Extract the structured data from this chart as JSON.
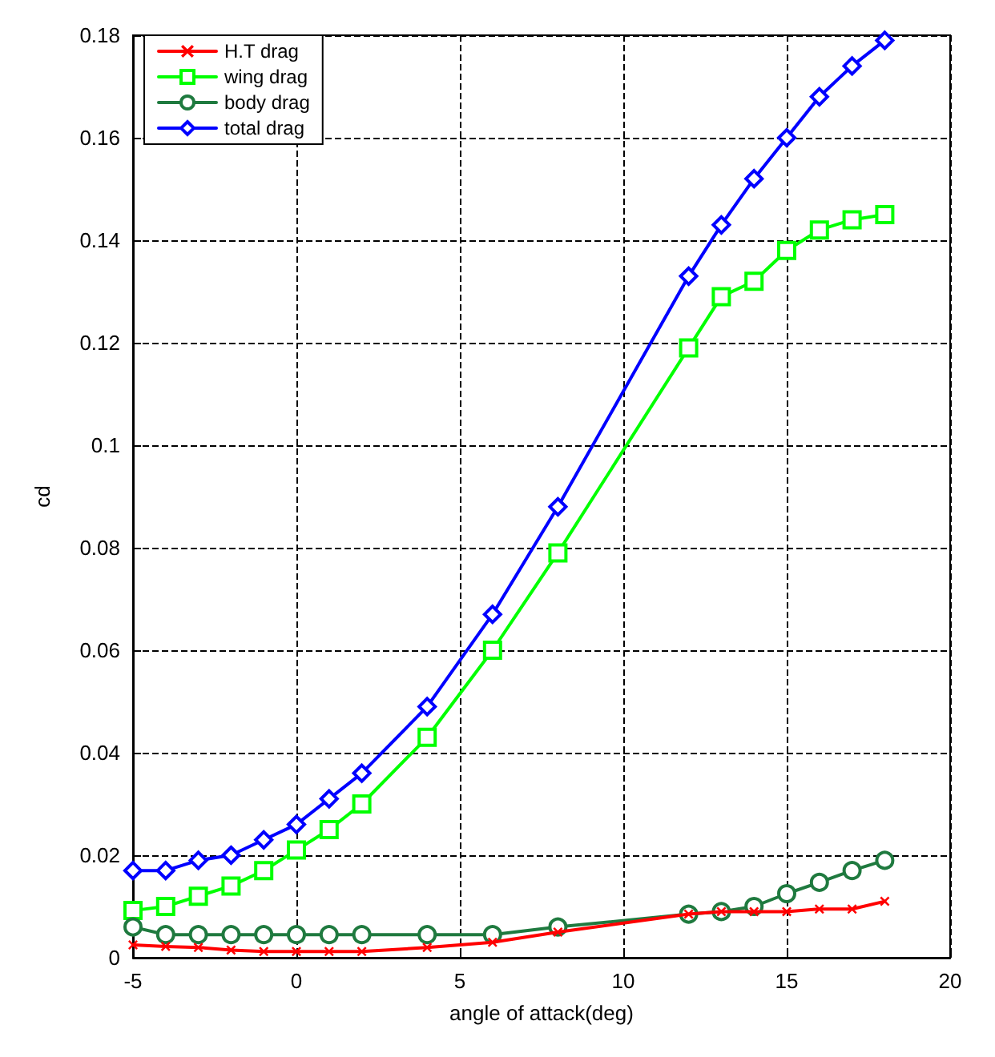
{
  "chart_data": {
    "type": "line",
    "xlabel": "angle of attack(deg)",
    "ylabel": "cd",
    "x": [
      -5,
      -4,
      -3,
      -2,
      -1,
      0,
      1,
      2,
      4,
      6,
      8,
      12,
      13,
      14,
      15,
      16,
      17,
      18
    ],
    "series": [
      {
        "name": "H.T drag",
        "color": "#ff0000",
        "marker": "cross",
        "values": [
          0.0025,
          0.0022,
          0.002,
          0.0015,
          0.0012,
          0.0012,
          0.0012,
          0.0012,
          0.002,
          0.003,
          0.005,
          0.0085,
          0.009,
          0.009,
          0.009,
          0.0095,
          0.0095,
          0.011
        ]
      },
      {
        "name": "wing drag",
        "color": "#00ff00",
        "marker": "square",
        "values": [
          0.0092,
          0.01,
          0.012,
          0.014,
          0.017,
          0.021,
          0.025,
          0.03,
          0.043,
          0.06,
          0.079,
          0.119,
          0.129,
          0.132,
          0.138,
          0.142,
          0.144,
          0.145
        ]
      },
      {
        "name": "body drag",
        "color": "#1f7a3f",
        "marker": "circle",
        "values": [
          0.006,
          0.0045,
          0.0045,
          0.0045,
          0.0045,
          0.0045,
          0.0045,
          0.0045,
          0.0045,
          0.0045,
          0.006,
          0.0085,
          0.009,
          0.01,
          0.0125,
          0.0147,
          0.017,
          0.019
        ]
      },
      {
        "name": "total drag",
        "color": "#0000ff",
        "marker": "diamond",
        "values": [
          0.017,
          0.017,
          0.019,
          0.02,
          0.023,
          0.026,
          0.031,
          0.036,
          0.049,
          0.067,
          0.088,
          0.133,
          0.143,
          0.152,
          0.16,
          0.168,
          0.174,
          0.179
        ]
      }
    ],
    "xlim": [
      -5,
      20
    ],
    "xticks": [
      -5,
      0,
      5,
      10,
      15,
      20
    ],
    "ylim": [
      0,
      0.18
    ],
    "yticks": [
      0,
      0.02,
      0.04,
      0.06,
      0.08,
      0.1,
      0.12,
      0.14,
      0.16,
      0.18
    ],
    "grid": true,
    "legend": "top left",
    "line_style": "solid"
  }
}
